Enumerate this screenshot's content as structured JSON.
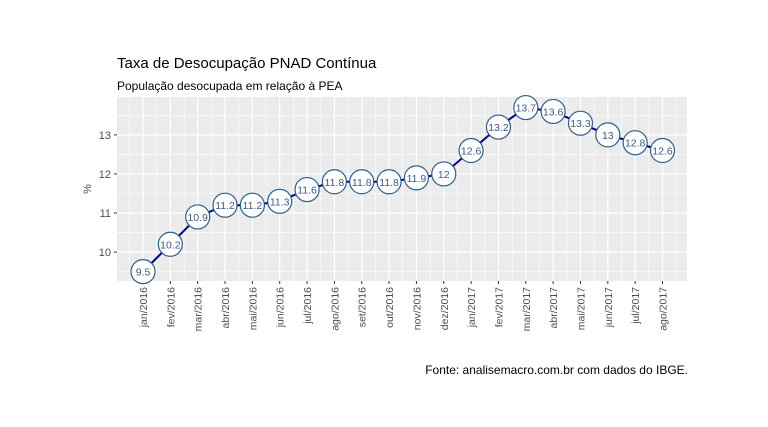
{
  "chart_data": {
    "type": "line",
    "title": "Taxa de Desocupação PNAD Contínua",
    "subtitle": "População desocupada em relação à PEA",
    "xlabel": "",
    "ylabel": "%",
    "caption": "Fonte: analisemacro.com.br com dados do IBGE.",
    "categories": [
      "jan/2016",
      "fev/2016",
      "mar/2016",
      "abr/2016",
      "mai/2016",
      "jun/2016",
      "jul/2016",
      "ago/2016",
      "set/2016",
      "out/2016",
      "nov/2016",
      "dez/2016",
      "jan/2017",
      "fev/2017",
      "mar/2017",
      "abr/2017",
      "mai/2017",
      "jun/2017",
      "jul/2017",
      "ago/2017"
    ],
    "values": [
      9.5,
      10.2,
      10.9,
      11.2,
      11.2,
      11.3,
      11.6,
      11.8,
      11.8,
      11.8,
      11.9,
      12,
      12.6,
      13.2,
      13.7,
      13.6,
      13.3,
      13,
      12.8,
      12.6
    ],
    "data_labels": [
      "9.5",
      "10.2",
      "10.9",
      "11.2",
      "11.2",
      "11.3",
      "11.6",
      "11.8",
      "11.8",
      "11.8",
      "11.9",
      "12",
      "12.6",
      "13.2",
      "13.7",
      "13.6",
      "13.3",
      "13",
      "12.8",
      "12.6"
    ],
    "yticks": [
      "10",
      "11",
      "12",
      "13"
    ],
    "ylim": [
      9.26,
      13.97
    ],
    "grid": true,
    "legend": "none",
    "colors": {
      "line": "#00008b",
      "marker_edge": "#2f5f8a",
      "marker_fill": "#ffffff",
      "panel": "#ebebeb",
      "grid": "#ffffff"
    }
  }
}
